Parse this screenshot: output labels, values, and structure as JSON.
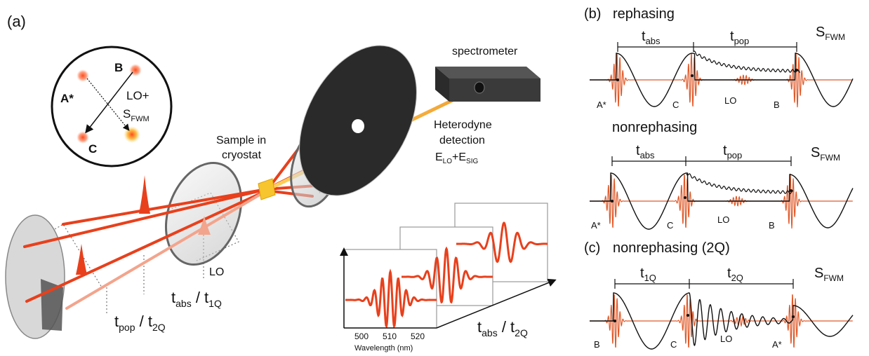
{
  "panel_a": {
    "label": "(a)",
    "spectrometer": "spectrometer",
    "heterodyne_line1": "Heterodyne",
    "heterodyne_line2": "detection",
    "elo": "E",
    "elo_sub": "LO",
    "plus": "+E",
    "esig_sub": "SIG",
    "sample_line1": "Sample in",
    "sample_line2": "cryostat",
    "lo": "LO",
    "tabs_main": "t",
    "tabs_sub": "abs",
    "tabs_sep": " / t",
    "tabs_sub2": "1Q",
    "tpop_main": "t",
    "tpop_sub": "pop",
    "tpop_sep": " / t",
    "tpop_sub2": "2Q",
    "beam_map": {
      "a_star": "A*",
      "b": "B",
      "c": "C",
      "lo_plus": "LO+",
      "s": "S",
      "s_sub": "FWM"
    },
    "inset": {
      "ticks": [
        "500",
        "510",
        "520"
      ],
      "xlabel": "Wavelength (nm)",
      "axis_main": "t",
      "axis_sub": "abs",
      "axis_sep": " / t",
      "axis_sub2": "2Q"
    }
  },
  "panel_b": {
    "label": "(b)",
    "title": "rephasing",
    "t1": "t",
    "t1_sub": "abs",
    "t2": "t",
    "t2_sub": "pop",
    "s": "S",
    "s_sub": "FWM",
    "pulses": [
      "A*",
      "C",
      "LO",
      "B"
    ]
  },
  "panel_nonreph": {
    "title": "nonrephasing",
    "t1": "t",
    "t1_sub": "abs",
    "t2": "t",
    "t2_sub": "pop",
    "s": "S",
    "s_sub": "FWM",
    "pulses": [
      "A*",
      "C",
      "LO",
      "B"
    ]
  },
  "panel_c": {
    "label": "(c)",
    "title": "nonrephasing (2Q)",
    "t1": "t",
    "t1_sub": "1Q",
    "t2": "t",
    "t2_sub": "2Q",
    "s": "S",
    "s_sub": "FWM",
    "pulses": [
      "B",
      "C",
      "LO",
      "A*"
    ]
  },
  "colors": {
    "beam": "#e8401c",
    "beam_light": "#f3a48c",
    "pulse": "#e05a2a",
    "dark": "#111111",
    "grey_optic": "#c9c9c9"
  }
}
